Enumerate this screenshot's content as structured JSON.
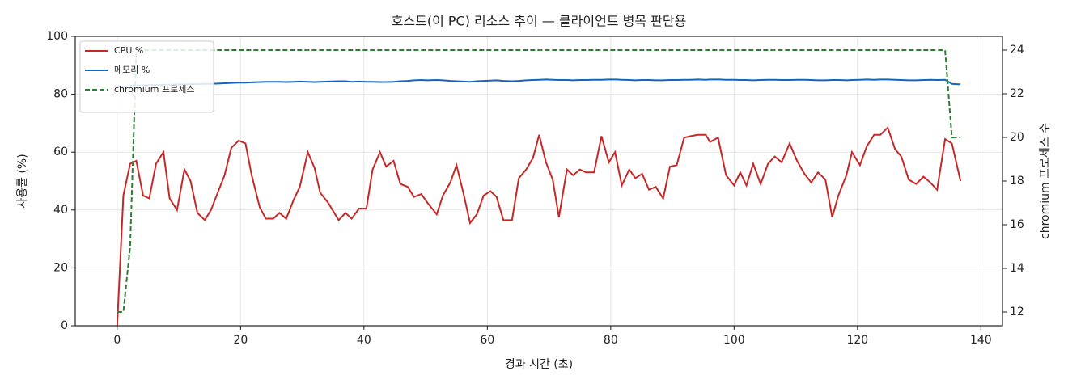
{
  "chart_data": {
    "type": "line",
    "title": "호스트(이 PC) 리소스 추이 — 클라이언트 병목 판단용",
    "xlabel": "경과 시간 (초)",
    "ylabel": "사용률 (%)",
    "y2label": "chromium 프로세스 수",
    "x": [
      0,
      1.0,
      2.1,
      3.1,
      4.2,
      5.2,
      6.3,
      7.5,
      8.5,
      9.7,
      10.9,
      11.9,
      13.0,
      14.2,
      15.2,
      16.3,
      17.4,
      18.5,
      19.7,
      20.8,
      21.8,
      23.1,
      24.1,
      25.3,
      26.3,
      27.4,
      28.6,
      29.6,
      30.9,
      32.0,
      32.9,
      34.2,
      35.9,
      37.0,
      38.0,
      39.2,
      40.4,
      41.4,
      42.6,
      43.6,
      44.8,
      45.9,
      47.1,
      48.1,
      49.3,
      50.3,
      51.8,
      52.8,
      54.0,
      55.0,
      56.1,
      57.2,
      58.3,
      59.4,
      60.5,
      61.5,
      62.6,
      64.0,
      65.1,
      66.3,
      67.4,
      68.4,
      69.5,
      70.6,
      71.6,
      72.9,
      73.9,
      75.0,
      76.0,
      77.3,
      78.5,
      79.7,
      80.7,
      81.8,
      83.0,
      84.0,
      85.1,
      86.2,
      87.3,
      88.5,
      89.6,
      90.7,
      91.9,
      92.9,
      94.1,
      95.4,
      96.1,
      97.4,
      98.7,
      100.0,
      101.0,
      102.0,
      103.1,
      104.3,
      105.5,
      106.6,
      107.7,
      109.0,
      110.2,
      111.4,
      112.5,
      113.6,
      114.8,
      115.9,
      116.9,
      118.2,
      119.1,
      120.4,
      121.5,
      122.7,
      123.7,
      124.9,
      126.1,
      127.1,
      128.3,
      129.5,
      130.7,
      131.8,
      132.9,
      134.2,
      135.3,
      136.7
    ],
    "series": [
      {
        "name": "CPU %",
        "color": "#c62828",
        "values": [
          0,
          45,
          56,
          57,
          45,
          44,
          56,
          60,
          44,
          40,
          54,
          50,
          39,
          36.5,
          40,
          46,
          52,
          61.5,
          64,
          63,
          52,
          41,
          37,
          37,
          39,
          37,
          43.5,
          48,
          60,
          54.5,
          46,
          42.5,
          36.5,
          39,
          37,
          40.5,
          40.5,
          54,
          60,
          55,
          57,
          49,
          48,
          44.5,
          45.5,
          42.5,
          38.5,
          45,
          49.5,
          55.5,
          46,
          35.5,
          38.5,
          45,
          46.5,
          44.5,
          36.5,
          36.5,
          51,
          54,
          58,
          66,
          56.5,
          50.5,
          37.5,
          54,
          52,
          54,
          53,
          53,
          65.5,
          56.5,
          60,
          48.5,
          54,
          51,
          52.5,
          47,
          48,
          44,
          55,
          55.5,
          65,
          65.5,
          66,
          66,
          63.5,
          65,
          52,
          48.5,
          53,
          48.5,
          56,
          49,
          56,
          58.5,
          56.5,
          63,
          57,
          52.5,
          49.5,
          53,
          50.5,
          37.5,
          45,
          52,
          60,
          55.5,
          62,
          66,
          66,
          68.5,
          61,
          58.5,
          50.5,
          49,
          51.5,
          49.5,
          47,
          64.5,
          63,
          50
        ]
      },
      {
        "name": "메모리 %",
        "color": "#1565c0",
        "values": [
          82.5,
          82.7,
          82.9,
          83.0,
          83.1,
          83.2,
          83.2,
          83.3,
          83.3,
          83.4,
          83.4,
          83.5,
          83.5,
          83.6,
          83.6,
          83.7,
          83.8,
          83.9,
          84.0,
          84.0,
          84.1,
          84.2,
          84.3,
          84.3,
          84.3,
          84.2,
          84.3,
          84.4,
          84.3,
          84.2,
          84.3,
          84.4,
          84.5,
          84.5,
          84.3,
          84.4,
          84.3,
          84.3,
          84.2,
          84.2,
          84.3,
          84.5,
          84.6,
          84.8,
          84.9,
          84.8,
          84.9,
          84.8,
          84.6,
          84.5,
          84.4,
          84.3,
          84.5,
          84.6,
          84.7,
          84.8,
          84.6,
          84.5,
          84.6,
          84.8,
          84.9,
          85.0,
          85.1,
          85.0,
          84.9,
          84.9,
          84.8,
          84.9,
          84.9,
          85.0,
          85.0,
          85.1,
          85.1,
          85.0,
          84.9,
          84.8,
          84.9,
          84.9,
          84.8,
          84.8,
          84.9,
          84.9,
          85.0,
          85.0,
          85.1,
          85.0,
          85.1,
          85.1,
          85.0,
          85.0,
          84.9,
          84.9,
          84.8,
          84.9,
          85.0,
          85.0,
          84.9,
          84.9,
          85.0,
          85.0,
          84.9,
          84.8,
          84.8,
          84.9,
          84.9,
          84.8,
          84.9,
          85.0,
          85.1,
          85.0,
          85.1,
          85.1,
          85.0,
          84.9,
          84.8,
          84.8,
          84.9,
          85.0,
          84.9,
          85.0,
          83.6,
          83.4
        ]
      },
      {
        "name": "chromium 프로세스",
        "color": "#2e7d32",
        "dashed": true,
        "axis": "y2",
        "values": [
          12,
          12,
          15,
          24,
          24,
          24,
          24,
          24,
          24,
          24,
          24,
          24,
          24,
          24,
          24,
          24,
          24,
          24,
          24,
          24,
          24,
          24,
          24,
          24,
          24,
          24,
          24,
          24,
          24,
          24,
          24,
          24,
          24,
          24,
          24,
          24,
          24,
          24,
          24,
          24,
          24,
          24,
          24,
          24,
          24,
          24,
          24,
          24,
          24,
          24,
          24,
          24,
          24,
          24,
          24,
          24,
          24,
          24,
          24,
          24,
          24,
          24,
          24,
          24,
          24,
          24,
          24,
          24,
          24,
          24,
          24,
          24,
          24,
          24,
          24,
          24,
          24,
          24,
          24,
          24,
          24,
          24,
          24,
          24,
          24,
          24,
          24,
          24,
          24,
          24,
          24,
          24,
          24,
          24,
          24,
          24,
          24,
          24,
          24,
          24,
          24,
          24,
          24,
          24,
          24,
          24,
          24,
          24,
          24,
          24,
          24,
          24,
          24,
          24,
          24,
          24,
          24,
          24,
          24,
          24,
          20,
          20
        ]
      }
    ],
    "xlim": [
      -6.8,
      143.5
    ],
    "xticks": [
      0,
      20,
      40,
      60,
      80,
      100,
      120,
      140
    ],
    "ylim": [
      0,
      100
    ],
    "yticks": [
      0,
      20,
      40,
      60,
      80,
      100
    ],
    "y2lim": [
      11.37,
      24.63
    ],
    "y2ticks": [
      12,
      14,
      16,
      18,
      20,
      22,
      24
    ],
    "grid": true,
    "legend": "upper-left"
  }
}
